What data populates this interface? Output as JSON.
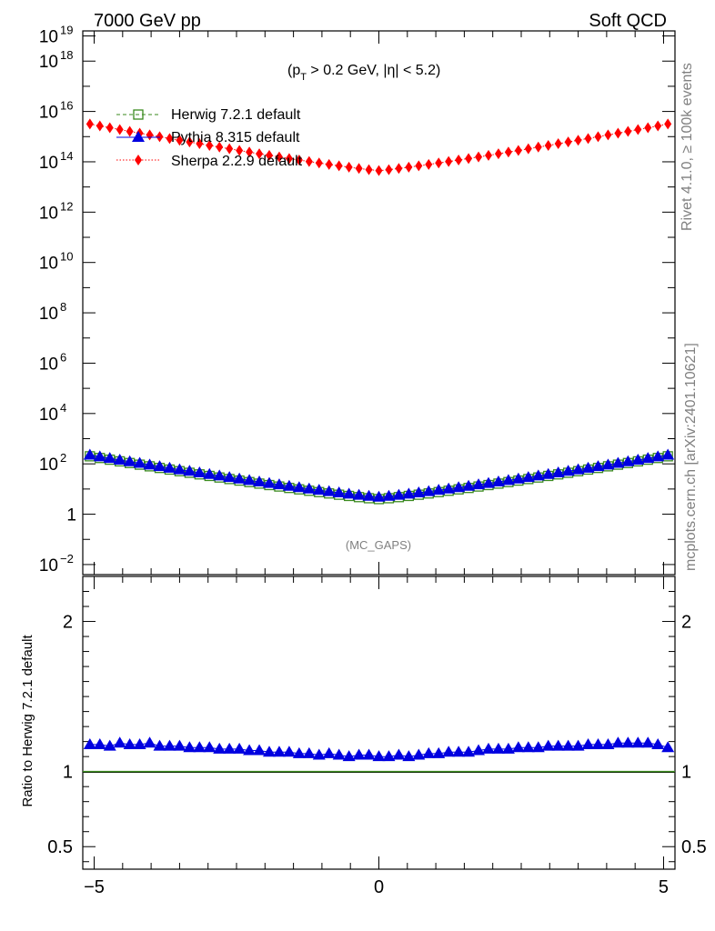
{
  "header": {
    "left": "7000 GeV pp",
    "right": "Soft QCD"
  },
  "side_labels": {
    "rivet": "Rivet 4.1.0, ≥ 100k events",
    "mcplots": "mcplots.cern.ch [arXiv:2401.10621]"
  },
  "chart_data": {
    "type": "scatter",
    "title": "(p_T > 0.2 GeV, |η| < 5.2)",
    "watermark": "(MC_GAPS)",
    "xlim": [
      -5.2,
      5.2
    ],
    "main": {
      "yscale": "log",
      "ylim_log10": [
        -2.4,
        19.2
      ],
      "y_ticks": [
        {
          "exp": -2,
          "label": "10",
          "sup": "−2"
        },
        {
          "exp": 0,
          "label": "1",
          "sup": ""
        },
        {
          "exp": 2,
          "label": "10",
          "sup": "2"
        },
        {
          "exp": 4,
          "label": "10",
          "sup": "4"
        },
        {
          "exp": 6,
          "label": "10",
          "sup": "6"
        },
        {
          "exp": 8,
          "label": "10",
          "sup": "8"
        },
        {
          "exp": 10,
          "label": "10",
          "sup": "10"
        },
        {
          "exp": 12,
          "label": "10",
          "sup": "12"
        },
        {
          "exp": 14,
          "label": "10",
          "sup": "14"
        },
        {
          "exp": 16,
          "label": "10",
          "sup": "16"
        },
        {
          "exp": 18,
          "label": "10",
          "sup": "18"
        },
        {
          "exp": 19,
          "label": "10",
          "sup": "19"
        }
      ],
      "series": [
        {
          "name": "Herwig 7.2.1 default",
          "color": "#3a8a1e",
          "marker": "open-square",
          "line": "dashed",
          "log_center": 0.6,
          "log_at_edge": 2.3
        },
        {
          "name": "Pythia 8.315 default",
          "color": "#0000e0",
          "marker": "triangle",
          "line": "solid",
          "log_center": 0.68,
          "log_at_edge": 2.35
        },
        {
          "name": "Sherpa 2.2.9 default",
          "color": "#ff0000",
          "marker": "diamond",
          "line": "dotted",
          "log_center": 13.65,
          "log_at_edge": 15.5
        }
      ]
    },
    "ratio": {
      "ylabel": "Ratio to Herwig 7.2.1 default",
      "ylim": [
        0.35,
        2.3
      ],
      "y_ticks": [
        0.5,
        1,
        2
      ],
      "x_ticks": [
        -5,
        0,
        5
      ],
      "x_tick_labels": [
        "−5",
        "0",
        "5"
      ],
      "reference": 1.0,
      "pythia_values": [
        1.18,
        1.18,
        1.17,
        1.19,
        1.18,
        1.18,
        1.19,
        1.17,
        1.17,
        1.17,
        1.16,
        1.16,
        1.16,
        1.15,
        1.15,
        1.15,
        1.14,
        1.14,
        1.13,
        1.13,
        1.13,
        1.12,
        1.12,
        1.11,
        1.12,
        1.11,
        1.1,
        1.11,
        1.11,
        1.1,
        1.1,
        1.11,
        1.1,
        1.11,
        1.12,
        1.12,
        1.13,
        1.13,
        1.13,
        1.14,
        1.15,
        1.15,
        1.15,
        1.16,
        1.16,
        1.16,
        1.17,
        1.17,
        1.17,
        1.17,
        1.18,
        1.18,
        1.18,
        1.19,
        1.19,
        1.19,
        1.19,
        1.18,
        1.16
      ]
    }
  }
}
